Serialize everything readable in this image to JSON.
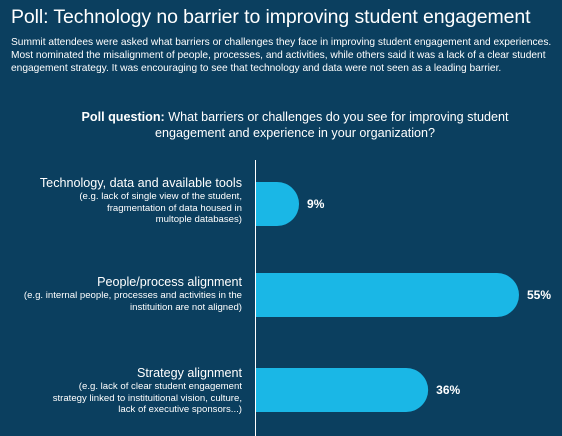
{
  "header": {
    "title": "Poll: Technology no barrier to improving student engagement",
    "intro": "Summit attendees were asked what barriers or challenges they face in improving student engagement and experiences. Most nominated the misalignment of people, processes, and activities, while others said it was a lack of a clear student engagement strategy. It was encouraging to see that technology and data were not seen as a leading barrier."
  },
  "question": {
    "prefix": "Poll question:",
    "text": "What barriers or challenges do you see for improving student engagement and experience in your organization?"
  },
  "colors": {
    "background": "#0b3f5f",
    "bar": "#1ab7e6",
    "text": "#ffffff"
  },
  "chart_data": {
    "type": "bar",
    "orientation": "horizontal",
    "categories": [
      "Technology, data and available tools",
      "People/process alignment",
      "Strategy alignment"
    ],
    "category_notes": [
      "(e.g. lack of single view of the student, fragmentation of data housed in multople databases)",
      "(e.g. internal people, processes and activities in the instituition are not aligned)",
      "(e.g. lack of clear student engagement strategy linked to instituitional vision, culture, lack of executive sponsors...)"
    ],
    "values": [
      9,
      55,
      36
    ],
    "value_labels": [
      "9%",
      "55%",
      "36%"
    ],
    "unit": "%",
    "xlim": [
      0,
      55
    ],
    "grid": false,
    "legend": "none"
  }
}
